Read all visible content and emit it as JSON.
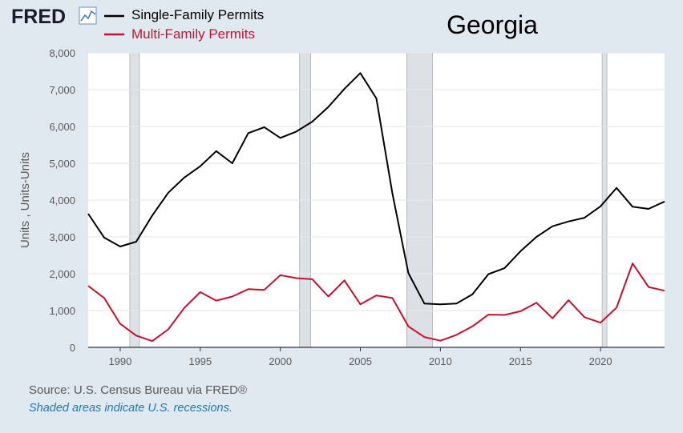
{
  "brand": {
    "logo_text": "FRED"
  },
  "chart_data": {
    "type": "line",
    "title": "Georgia",
    "ylabel": "Units , Units-Units",
    "xlabel": "",
    "xlim": [
      1988,
      2024
    ],
    "ylim": [
      0,
      8000
    ],
    "x_ticks": [
      1990,
      1995,
      2000,
      2005,
      2010,
      2015,
      2020
    ],
    "y_ticks": [
      0,
      1000,
      2000,
      3000,
      4000,
      5000,
      6000,
      7000,
      8000
    ],
    "y_tick_labels": [
      "0",
      "1,000",
      "2,000",
      "3,000",
      "4,000",
      "5,000",
      "6,000",
      "7,000",
      "8,000"
    ],
    "grid": true,
    "legend_position": "top-left",
    "recessions": [
      [
        1990.6,
        1991.2
      ],
      [
        2001.2,
        2001.9
      ],
      [
        2007.9,
        2009.5
      ],
      [
        2020.1,
        2020.4
      ]
    ],
    "series": [
      {
        "name": "Single-Family Permits",
        "color": "#000000",
        "x": [
          1988,
          1989,
          1990,
          1991,
          1992,
          1993,
          1994,
          1995,
          1996,
          1997,
          1998,
          1999,
          2000,
          2001,
          2002,
          2003,
          2004,
          2005,
          2006,
          2007,
          2008,
          2009,
          2010,
          2011,
          2012,
          2013,
          2014,
          2015,
          2016,
          2017,
          2018,
          2019,
          2020,
          2021,
          2022,
          2023,
          2024
        ],
        "values": [
          3630,
          2980,
          2740,
          2870,
          3580,
          4200,
          4610,
          4920,
          5330,
          5000,
          5820,
          5980,
          5690,
          5860,
          6130,
          6530,
          7020,
          7450,
          6760,
          4180,
          2020,
          1190,
          1170,
          1190,
          1440,
          1990,
          2150,
          2610,
          3000,
          3290,
          3420,
          3520,
          3830,
          4330,
          3820,
          3760,
          3960
        ]
      },
      {
        "name": "Multi-Family Permits",
        "color": "#c8102e",
        "x": [
          1988,
          1989,
          1990,
          1991,
          1992,
          1993,
          1994,
          1995,
          1996,
          1997,
          1998,
          1999,
          2000,
          2001,
          2002,
          2003,
          2004,
          2005,
          2006,
          2007,
          2008,
          2009,
          2010,
          2011,
          2012,
          2013,
          2014,
          2015,
          2016,
          2017,
          2018,
          2019,
          2020,
          2021,
          2022,
          2023,
          2024
        ],
        "values": [
          1670,
          1340,
          640,
          320,
          170,
          490,
          1070,
          1500,
          1270,
          1380,
          1580,
          1560,
          1960,
          1880,
          1850,
          1380,
          1820,
          1170,
          1410,
          1340,
          570,
          280,
          180,
          340,
          570,
          890,
          880,
          980,
          1210,
          790,
          1280,
          820,
          670,
          1080,
          2280,
          1640,
          1540
        ]
      }
    ]
  },
  "footer": {
    "source": "Source: U.S. Census Bureau via FRED®",
    "note": "Shaded areas indicate U.S. recessions."
  }
}
